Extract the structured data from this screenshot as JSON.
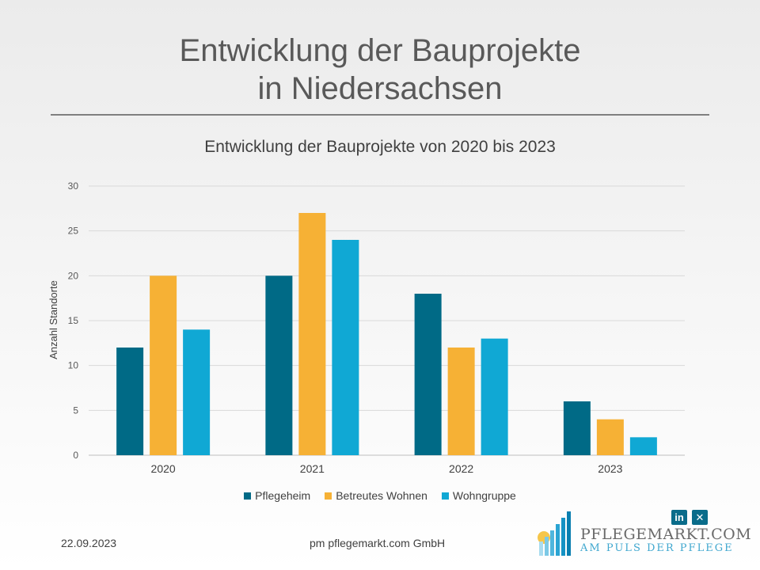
{
  "slide": {
    "title_line1": "Entwicklung der Bauprojekte",
    "title_line2": "in Niedersachsen"
  },
  "chart_data": {
    "type": "bar",
    "title": "Entwicklung der Bauprojekte von 2020 bis 2023",
    "ylabel": "Anzahl Standorte",
    "xlabel": "",
    "categories": [
      "2020",
      "2021",
      "2022",
      "2023"
    ],
    "ylim": [
      0,
      30
    ],
    "yticks": [
      0,
      5,
      10,
      15,
      20,
      25,
      30
    ],
    "grid": true,
    "legend_position": "bottom",
    "series": [
      {
        "name": "Pflegeheim",
        "color": "#006a86",
        "values": [
          12,
          20,
          18,
          6
        ]
      },
      {
        "name": "Betreutes Wohnen",
        "color": "#f6b135",
        "values": [
          20,
          27,
          12,
          4
        ]
      },
      {
        "name": "Wohngruppe",
        "color": "#10a8d4",
        "values": [
          14,
          24,
          13,
          2
        ]
      }
    ]
  },
  "footer": {
    "date": "22.09.2023",
    "company": "pm pflegemarkt.com GmbH"
  },
  "social": {
    "linkedin_label": "in",
    "xing_label": "✕"
  },
  "logo": {
    "name": "PFLEGEMARKT.COM",
    "tagline": "AM PULS DER PFLEGE"
  }
}
